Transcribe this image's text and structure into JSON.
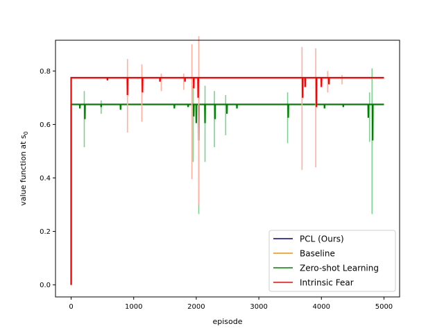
{
  "chart_data": {
    "type": "line",
    "title": "",
    "xlabel": "episode",
    "ylabel_main": "value function at s",
    "ylabel_sub": "0",
    "xlim": [
      -250,
      5250
    ],
    "ylim": [
      -0.045,
      0.915
    ],
    "xticks": [
      0,
      1000,
      2000,
      3000,
      4000,
      5000
    ],
    "xtick_labels": [
      "0",
      "1000",
      "2000",
      "3000",
      "4000",
      "5000"
    ],
    "yticks": [
      0.0,
      0.2,
      0.4,
      0.6,
      0.8
    ],
    "ytick_labels": [
      "0.0",
      "0.2",
      "0.4",
      "0.6",
      "0.8"
    ],
    "grid": false,
    "legend_position": "lower-right",
    "series": [
      {
        "name": "PCL (Ours)",
        "color": "#00008b",
        "start": 0.0,
        "x": [],
        "y": []
      },
      {
        "name": "Baseline",
        "color": "#ff8c00",
        "start": 0.0,
        "x": [],
        "y": []
      },
      {
        "name": "Zero-shot Learning",
        "color": "#008000",
        "light_color": "#7fd18f",
        "start": 0.0,
        "plateau": 0.675,
        "x_end": 5000,
        "dips": [
          [
            140,
            0.66
          ],
          [
            220,
            0.62
          ],
          [
            480,
            0.665
          ],
          [
            790,
            0.655
          ],
          [
            1650,
            0.66
          ],
          [
            1870,
            0.665
          ],
          [
            1960,
            0.63
          ],
          [
            2000,
            0.605
          ],
          [
            2040,
            0.54
          ],
          [
            2140,
            0.605
          ],
          [
            2300,
            0.62
          ],
          [
            2490,
            0.64
          ],
          [
            2650,
            0.66
          ],
          [
            3470,
            0.625
          ],
          [
            4050,
            0.66
          ],
          [
            4350,
            0.665
          ],
          [
            4750,
            0.625
          ],
          [
            4820,
            0.54
          ]
        ],
        "spikes": [
          [
            210,
            0.725,
            0.515
          ],
          [
            480,
            0.69,
            0.64
          ],
          [
            1950,
            0.745,
            0.46
          ],
          [
            2040,
            0.65,
            0.265
          ],
          [
            2140,
            0.745,
            0.46
          ],
          [
            2290,
            0.725,
            0.515
          ],
          [
            2470,
            0.71,
            0.56
          ],
          [
            3460,
            0.72,
            0.53
          ],
          [
            4770,
            0.72,
            0.535
          ],
          [
            4810,
            0.81,
            0.265
          ]
        ]
      },
      {
        "name": "Intrinsic Fear",
        "color": "#ff0000",
        "light_color": "#ffb0a0",
        "start": 0.0,
        "plateau": 0.775,
        "x_end": 5000,
        "dips": [
          [
            580,
            0.765
          ],
          [
            900,
            0.71
          ],
          [
            1140,
            0.72
          ],
          [
            1420,
            0.76
          ],
          [
            1820,
            0.76
          ],
          [
            1960,
            0.735
          ],
          [
            2030,
            0.7
          ],
          [
            3700,
            0.7
          ],
          [
            3740,
            0.74
          ],
          [
            3920,
            0.665
          ],
          [
            4000,
            0.74
          ],
          [
            4120,
            0.75
          ]
        ],
        "spikes": [
          [
            900,
            0.845,
            0.57
          ],
          [
            1130,
            0.825,
            0.61
          ],
          [
            1440,
            0.79,
            0.725
          ],
          [
            1800,
            0.79,
            0.73
          ],
          [
            1930,
            0.9,
            0.395
          ],
          [
            2040,
            0.93,
            0.3
          ],
          [
            3690,
            0.89,
            0.43
          ],
          [
            3910,
            0.885,
            0.44
          ],
          [
            4100,
            0.8,
            0.72
          ],
          [
            4330,
            0.785,
            0.75
          ]
        ]
      }
    ]
  }
}
